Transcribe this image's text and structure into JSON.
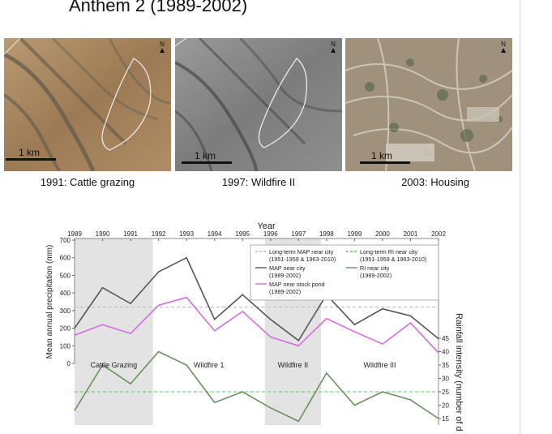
{
  "slide": {
    "title": "Anthem 2 (1989-2002)"
  },
  "photos": [
    {
      "caption": "1991: Cattle grazing",
      "scale_label": "1 km",
      "north_label": "N",
      "tone": "#a88762"
    },
    {
      "caption": "1997: Wildfire II",
      "scale_label": "1 km",
      "north_label": "N",
      "tone": "#8b8b8b"
    },
    {
      "caption": "2003: Housing",
      "scale_label": "1 km",
      "north_label": "N",
      "tone": "#9c8f7c"
    }
  ],
  "chart_data": {
    "type": "line",
    "xlabel_top": "Year",
    "ylabel_left": "Mean annual precipitation (mm)",
    "ylabel_right": "Rainfall intensity (number of d",
    "x": [
      1989,
      1990,
      1991,
      1992,
      1993,
      1994,
      1995,
      1996,
      1997,
      1998,
      1999,
      2000,
      2001,
      2002
    ],
    "x_tick_labels": [
      "1989",
      "1990",
      "1991",
      "1992",
      "1993",
      "1994",
      "1995",
      "1996",
      "1997",
      "1998",
      "1999",
      "2000",
      "2001",
      "2002"
    ],
    "left_ylim": [
      0,
      700
    ],
    "left_ticks": [
      "0",
      "100",
      "200",
      "300",
      "400",
      "500",
      "600",
      "700"
    ],
    "right_ylim": [
      13,
      46
    ],
    "right_ticks": [
      "15",
      "20",
      "25",
      "30",
      "35",
      "40",
      "45"
    ],
    "periods": [
      {
        "label": "Cattle Grazing",
        "start": 1989,
        "end": 1991.8,
        "shaded": true
      },
      {
        "label": "Wildfire 1",
        "start": 1991.8,
        "end": 1995.8,
        "shaded": false
      },
      {
        "label": "Wildfire II",
        "start": 1995.8,
        "end": 1997.8,
        "shaded": true
      },
      {
        "label": "Wildfire III",
        "start": 1997.8,
        "end": 2002,
        "shaded": false
      }
    ],
    "series": [
      {
        "name": "MAP near city\n(1989-2002)",
        "axis": "left",
        "color": "#555555",
        "values": [
          200,
          430,
          340,
          520,
          600,
          250,
          390,
          250,
          130,
          390,
          220,
          310,
          270,
          140
        ]
      },
      {
        "name": "MAP near stock pond\n(1989-2002)",
        "axis": "left",
        "color": "#d36fdc",
        "values": [
          160,
          220,
          170,
          330,
          375,
          185,
          295,
          150,
          100,
          255,
          180,
          110,
          230,
          60
        ]
      },
      {
        "name": "RI near city\n(1989-2002)",
        "axis": "right",
        "color": "#6c8f5f",
        "values": [
          18,
          35,
          28,
          40,
          35,
          21,
          25,
          19,
          14,
          32,
          20,
          25,
          22,
          15
        ]
      }
    ],
    "reference_lines": [
      {
        "name": "Long-term MAP near city\n(1951-1959 & 1963-2010)",
        "axis": "left",
        "value": 320,
        "color": "#bbbbbb"
      },
      {
        "name": "Long-term RI near city\n(1951-1959 & 1963-2010)",
        "axis": "right",
        "value": 25,
        "color": "#4fd64f"
      }
    ],
    "legend_position": "top-right",
    "legend_order": [
      "ref0",
      "ref1",
      "s0",
      "s2",
      "s1"
    ]
  }
}
